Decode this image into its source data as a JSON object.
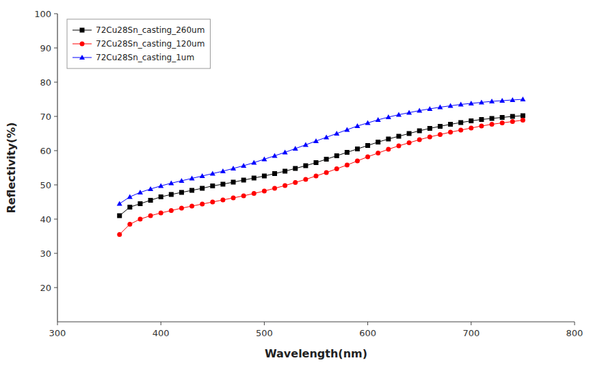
{
  "chart_data": {
    "type": "line",
    "xlabel": "Wavelength(nm)",
    "ylabel": "Reflectivity(%)",
    "xlim": [
      300,
      800
    ],
    "ylim": [
      10,
      100
    ],
    "xticks": [
      300,
      400,
      500,
      600,
      700,
      800
    ],
    "yticks": [
      20,
      30,
      40,
      50,
      60,
      70,
      80,
      90,
      100
    ],
    "grid": false,
    "legend": "upper left",
    "x": [
      360,
      370,
      380,
      390,
      400,
      410,
      420,
      430,
      440,
      450,
      460,
      470,
      480,
      490,
      500,
      510,
      520,
      530,
      540,
      550,
      560,
      570,
      580,
      590,
      600,
      610,
      620,
      630,
      640,
      650,
      660,
      670,
      680,
      690,
      700,
      710,
      720,
      730,
      740,
      750
    ],
    "series": [
      {
        "name": "72Cu28Sn_casting_260um",
        "color": "#000000",
        "marker": "square",
        "values": [
          41.0,
          43.5,
          44.5,
          45.5,
          46.5,
          47.2,
          47.8,
          48.4,
          49.0,
          49.7,
          50.2,
          50.8,
          51.4,
          52.0,
          52.6,
          53.3,
          54.0,
          54.8,
          55.6,
          56.5,
          57.5,
          58.5,
          59.5,
          60.5,
          61.5,
          62.5,
          63.4,
          64.2,
          65.0,
          65.8,
          66.5,
          67.1,
          67.7,
          68.2,
          68.7,
          69.1,
          69.4,
          69.7,
          70.0,
          70.2
        ]
      },
      {
        "name": "72Cu28Sn_casting_120um",
        "color": "#ff0000",
        "marker": "circle",
        "values": [
          35.5,
          38.5,
          40.0,
          41.0,
          41.8,
          42.5,
          43.2,
          43.8,
          44.4,
          45.0,
          45.6,
          46.2,
          46.8,
          47.5,
          48.2,
          49.0,
          49.8,
          50.7,
          51.6,
          52.6,
          53.6,
          54.7,
          55.8,
          57.0,
          58.2,
          59.3,
          60.4,
          61.4,
          62.3,
          63.2,
          64.0,
          64.7,
          65.4,
          66.0,
          66.6,
          67.2,
          67.7,
          68.1,
          68.5,
          68.9
        ]
      },
      {
        "name": "72Cu28Sn_casting_1um",
        "color": "#0000ff",
        "marker": "triangle",
        "values": [
          44.5,
          46.5,
          47.8,
          48.8,
          49.7,
          50.5,
          51.2,
          51.9,
          52.6,
          53.3,
          54.0,
          54.8,
          55.6,
          56.5,
          57.5,
          58.5,
          59.5,
          60.6,
          61.7,
          62.8,
          63.9,
          65.0,
          66.1,
          67.2,
          68.1,
          69.0,
          69.8,
          70.5,
          71.1,
          71.7,
          72.2,
          72.7,
          73.1,
          73.5,
          73.8,
          74.1,
          74.4,
          74.6,
          74.8,
          75.0
        ]
      }
    ]
  }
}
